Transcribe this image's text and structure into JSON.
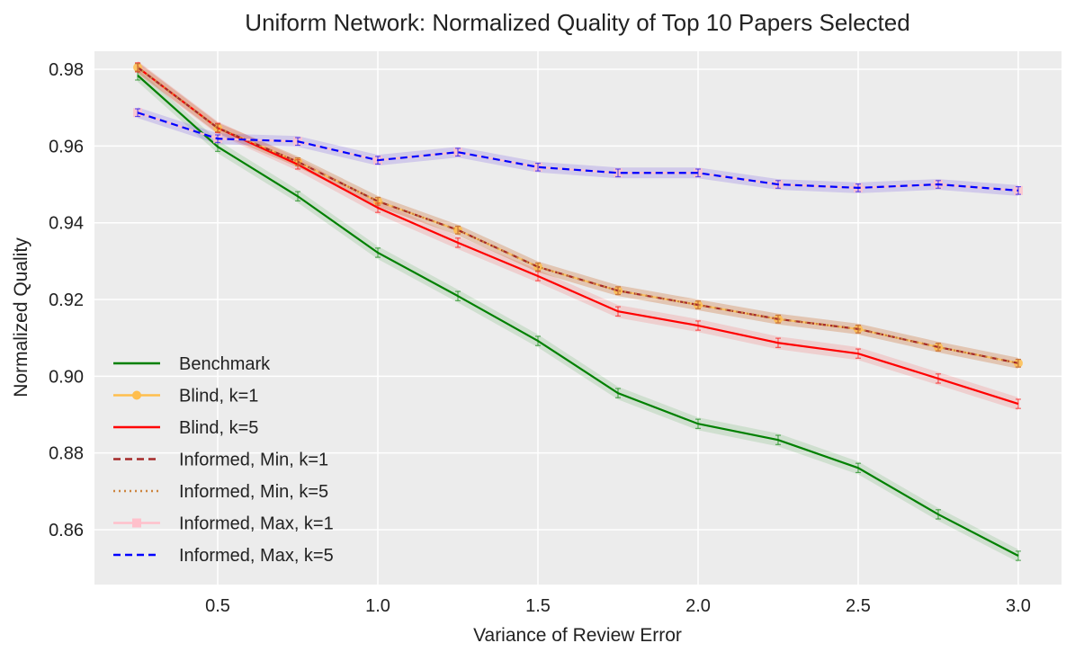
{
  "chart_data": {
    "type": "line",
    "title": "Uniform Network: Normalized Quality of Top 10 Papers Selected",
    "xlabel": "Variance of Review Error",
    "ylabel": "Normalized Quality",
    "xlim": [
      0.115,
      3.135
    ],
    "ylim": [
      0.8457,
      0.9847
    ],
    "xticks": [
      0.5,
      1.0,
      1.5,
      2.0,
      2.5,
      3.0
    ],
    "xtick_labels": [
      "0.5",
      "1.0",
      "1.5",
      "2.0",
      "2.5",
      "3.0"
    ],
    "yticks": [
      0.86,
      0.88,
      0.9,
      0.92,
      0.94,
      0.96,
      0.98
    ],
    "ytick_labels": [
      "0.86",
      "0.88",
      "0.90",
      "0.92",
      "0.94",
      "0.96",
      "0.98"
    ],
    "grid": true,
    "legend_position": "lower-left",
    "x": [
      0.25,
      0.5,
      0.75,
      1.0,
      1.25,
      1.5,
      1.75,
      2.0,
      2.25,
      2.5,
      2.75,
      3.0
    ],
    "series": [
      {
        "name": "Benchmark",
        "color": "#008000",
        "style": "solid",
        "marker": "none",
        "error": 0.0012,
        "values": [
          0.9784,
          0.9598,
          0.9469,
          0.9322,
          0.9209,
          0.9092,
          0.8956,
          0.8876,
          0.8834,
          0.8761,
          0.864,
          0.8532
        ]
      },
      {
        "name": "Blind, k=1",
        "color": "#ffbe4d",
        "style": "solid",
        "marker": "circle",
        "error": 0.001,
        "values": [
          0.9805,
          0.9647,
          0.9559,
          0.9456,
          0.9381,
          0.9285,
          0.9223,
          0.9186,
          0.9149,
          0.9123,
          0.9076,
          0.9034
        ]
      },
      {
        "name": "Blind, k=5",
        "color": "#ff0000",
        "style": "solid",
        "marker": "none",
        "error": 0.0012,
        "values": [
          0.9805,
          0.9647,
          0.9552,
          0.9439,
          0.9348,
          0.9261,
          0.9169,
          0.9132,
          0.9087,
          0.9059,
          0.8994,
          0.8928
        ]
      },
      {
        "name": "Informed, Min, k=1",
        "color": "#a52a2a",
        "style": "dashed",
        "marker": "none",
        "error": 0.001,
        "values": [
          0.9805,
          0.9647,
          0.9559,
          0.9456,
          0.9381,
          0.9285,
          0.9223,
          0.9186,
          0.9149,
          0.9123,
          0.9076,
          0.9034
        ]
      },
      {
        "name": "Informed, Min, k=5",
        "color": "#cd853f",
        "style": "dotted",
        "marker": "none",
        "error": 0.001,
        "values": [
          0.9805,
          0.9647,
          0.9559,
          0.9456,
          0.9381,
          0.9285,
          0.9223,
          0.9186,
          0.9149,
          0.9123,
          0.9076,
          0.9034
        ]
      },
      {
        "name": "Informed, Max, k=1",
        "color": "#ffc0cb",
        "style": "solid",
        "marker": "square",
        "error": 0.001,
        "values": [
          0.9687,
          0.9619,
          0.9612,
          0.9563,
          0.9584,
          0.9545,
          0.953,
          0.953,
          0.95,
          0.9491,
          0.95,
          0.9484
        ]
      },
      {
        "name": "Informed, Max, k=5",
        "color": "#0000ff",
        "style": "dashed",
        "marker": "none",
        "error": 0.001,
        "values": [
          0.9687,
          0.9619,
          0.9612,
          0.9563,
          0.9584,
          0.9545,
          0.953,
          0.953,
          0.95,
          0.9491,
          0.95,
          0.9484
        ]
      }
    ]
  }
}
